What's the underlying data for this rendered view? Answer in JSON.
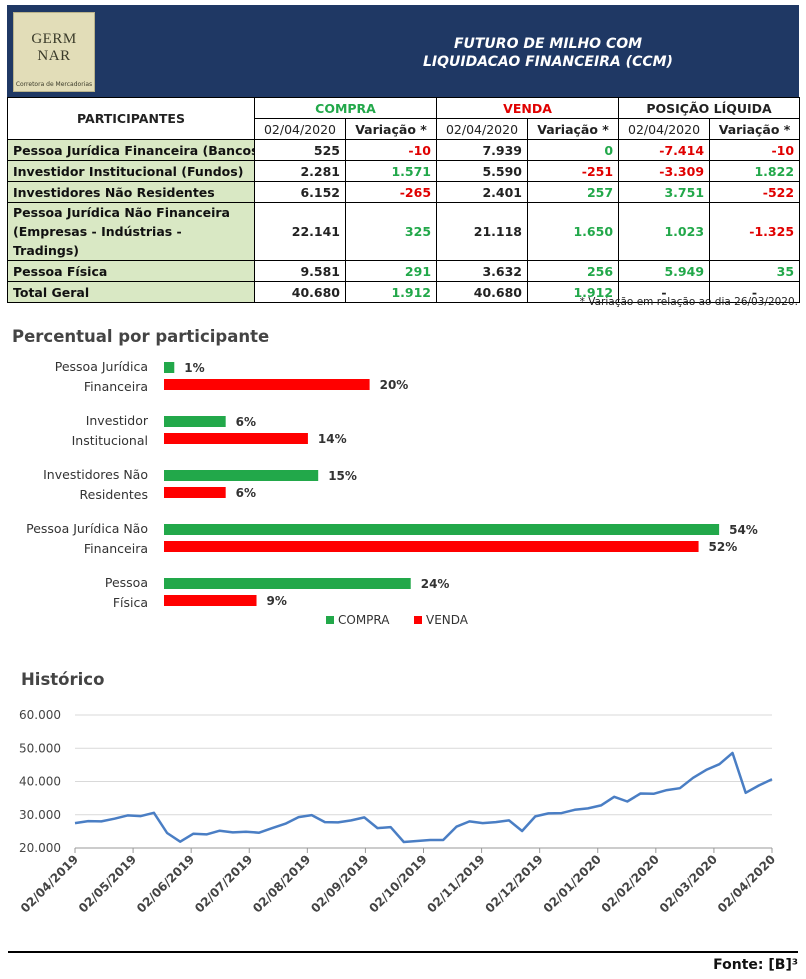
{
  "header": {
    "logo": {
      "text": "GERM NAR",
      "sub": "Corretora de Mercadorias"
    },
    "title_line1": "FUTURO DE MILHO COM",
    "title_line2": "LIQUIDACAO FINANCEIRA (CCM)"
  },
  "table": {
    "participants_header": "PARTICIPANTES",
    "compra_header": "COMPRA",
    "venda_header": "VENDA",
    "posicao_header": "POSIÇÃO LÍQUIDA",
    "date_header": "02/04/2020",
    "variacao_header": "Variação *",
    "rows": [
      {
        "label": "Pessoa Jurídica Financeira (Bancos)",
        "compra": "525",
        "compra_var": "-10",
        "venda": "7.939",
        "venda_var": "0",
        "pos": "-7.414",
        "pos_var": "-10"
      },
      {
        "label": "Investidor Institucional (Fundos)",
        "compra": "2.281",
        "compra_var": "1.571",
        "venda": "5.590",
        "venda_var": "-251",
        "pos": "-3.309",
        "pos_var": "1.822"
      },
      {
        "label": "Investidores Não Residentes",
        "compra": "6.152",
        "compra_var": "-265",
        "venda": "2.401",
        "venda_var": "257",
        "pos": "3.751",
        "pos_var": "-522"
      },
      {
        "label": "Pessoa Jurídica Não Financeira (Empresas - Indústrias - Tradings)",
        "compra": "22.141",
        "compra_var": "325",
        "venda": "21.118",
        "venda_var": "1.650",
        "pos": "1.023",
        "pos_var": "-1.325"
      },
      {
        "label": "Pessoa Física",
        "compra": "9.581",
        "compra_var": "291",
        "venda": "3.632",
        "venda_var": "256",
        "pos": "5.949",
        "pos_var": "35"
      }
    ],
    "total": {
      "label": "Total Geral",
      "compra": "40.680",
      "compra_var": "1.912",
      "venda": "40.680",
      "venda_var": "1.912",
      "pos": "-",
      "pos_var": "-"
    },
    "note": "* Variação em relação ao dia 26/03/2020."
  },
  "colors": {
    "compra": "#22a84a",
    "venda": "#ff0000",
    "negative": "#e00000",
    "line": "#4a7ec4",
    "header_bg": "#1f3864",
    "label_bg": "#d9e8c4"
  },
  "chart_data": [
    {
      "type": "bar",
      "orientation": "horizontal",
      "title": "Percentual por participante",
      "categories": [
        "Pessoa Jurídica Financeira",
        "Investidor Institucional",
        "Investidores Não Residentes",
        "Pessoa Jurídica Não Financeira",
        "Pessoa Física"
      ],
      "series": [
        {
          "name": "COMPRA",
          "values": [
            1,
            6,
            15,
            54,
            24
          ],
          "labels": [
            "1%",
            "6%",
            "15%",
            "54%",
            "24%"
          ]
        },
        {
          "name": "VENDA",
          "values": [
            20,
            14,
            6,
            52,
            9
          ],
          "labels": [
            "20%",
            "14%",
            "6%",
            "52%",
            "9%"
          ]
        }
      ],
      "legend": "bottom"
    },
    {
      "type": "line",
      "title": "Histórico",
      "ylim": [
        20000,
        60000
      ],
      "y_ticks": [
        "20.000",
        "30.000",
        "40.000",
        "50.000",
        "60.000"
      ],
      "x_ticks": [
        "02/04/2019",
        "02/05/2019",
        "02/06/2019",
        "02/07/2019",
        "02/08/2019",
        "02/09/2019",
        "02/10/2019",
        "02/11/2019",
        "02/12/2019",
        "02/01/2020",
        "02/02/2020",
        "02/03/2020",
        "02/04/2020"
      ],
      "grid": "horizontal",
      "series": [
        {
          "values": [
            27500,
            28100,
            28000,
            28800,
            29800,
            29600,
            30600,
            24500,
            21900,
            24300,
            24100,
            25200,
            24700,
            24900,
            24600,
            26000,
            27300,
            29300,
            29900,
            27800,
            27700,
            28300,
            29200,
            26000,
            26300,
            21800,
            22100,
            22400,
            22400,
            26400,
            28000,
            27500,
            27800,
            28300,
            25100,
            29500,
            30400,
            30500,
            31500,
            31900,
            32800,
            35400,
            34000,
            36400,
            36300,
            37400,
            38000,
            41100,
            43500,
            45200,
            48600,
            36600,
            38800,
            40680
          ]
        }
      ]
    }
  ],
  "source": "Fonte: [B]³"
}
